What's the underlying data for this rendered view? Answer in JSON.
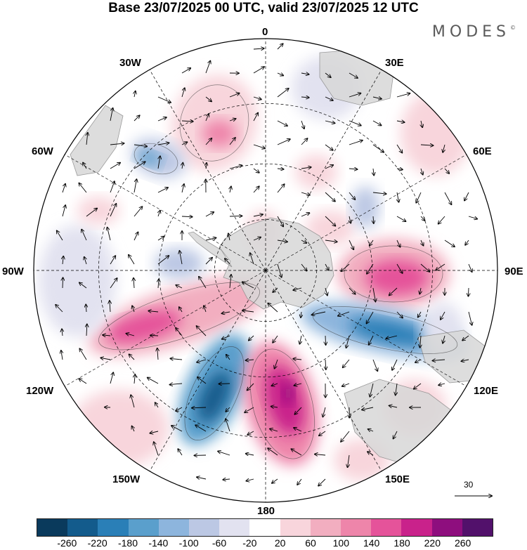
{
  "title": "Base 23/07/2025 00 UTC, valid 23/07/2025 12 UTC",
  "brand": "MODES",
  "brand_mark": "©",
  "map": {
    "projection": "south polar stereographic",
    "meridian_labels": {
      "m0": "0",
      "m30e": "30E",
      "m60e": "60E",
      "m90e": "90E",
      "m120e": "120E",
      "m150e": "150E",
      "m180": "180",
      "m150w": "150W",
      "m120w": "120W",
      "m90w": "90W",
      "m60w": "60W",
      "m30w": "30W"
    },
    "wind_reference_vector": "30",
    "colors": {
      "land": "#d8d8d8",
      "coast": "#8a8a8a",
      "grid": "#000000"
    }
  },
  "colorbar": {
    "colors": [
      "#0a3a5c",
      "#135b8c",
      "#2a7fb7",
      "#5a9fcc",
      "#8db5dd",
      "#bcc8e4",
      "#e2e2f0",
      "#ffffff",
      "#f8d5dc",
      "#f2aec0",
      "#ee85aa",
      "#e5539a",
      "#c9228b",
      "#8e0e7e",
      "#52116b"
    ],
    "ticks": [
      "-260",
      "-220",
      "-180",
      "-140",
      "-100",
      "-60",
      "-20",
      "20",
      "60",
      "100",
      "140",
      "180",
      "220",
      "260"
    ]
  }
}
